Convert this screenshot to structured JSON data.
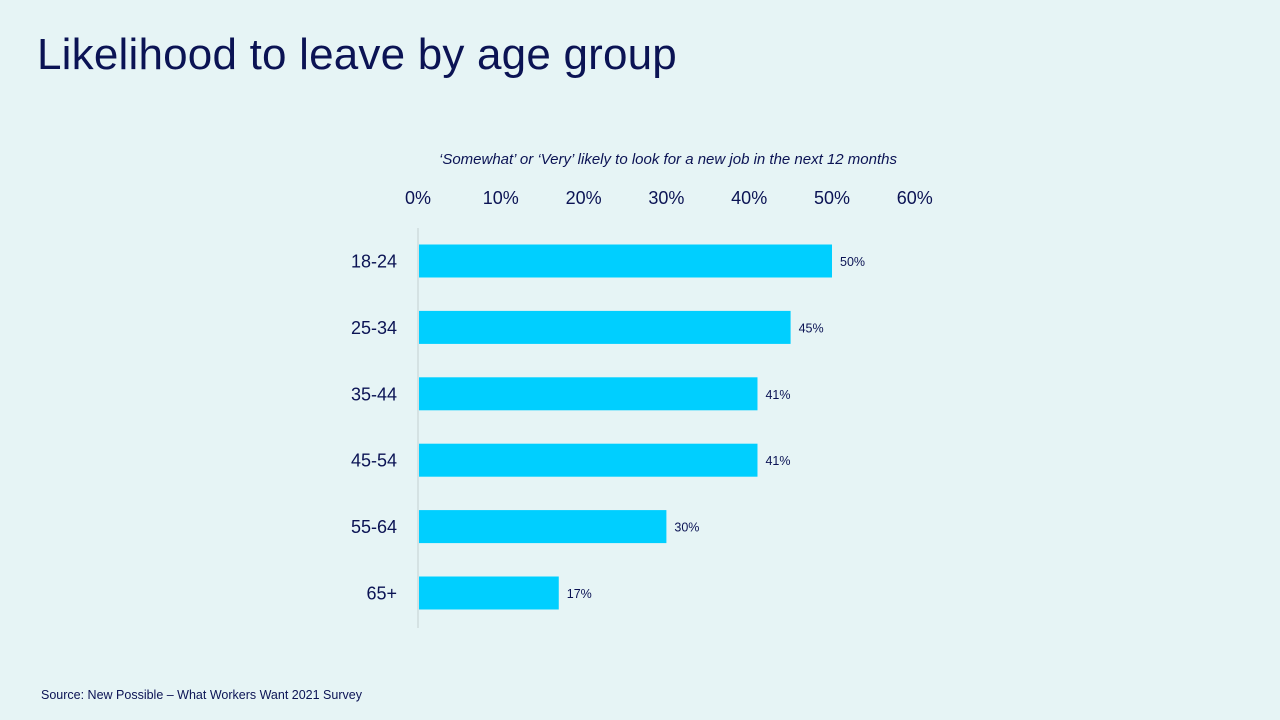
{
  "slide": {
    "title": "Likelihood to leave by age group",
    "source": "Source: New Possible – What Workers Want 2021 Survey"
  },
  "colors": {
    "background": "#e6f4f5",
    "text": "#0b1354",
    "bar": "#00cfff",
    "axis": "#cfdcdd"
  },
  "chart_data": {
    "type": "bar",
    "orientation": "horizontal",
    "subtitle": "‘Somewhat’ or ‘Very’ likely to look for a new job in the next 12 months",
    "categories": [
      "18-24",
      "25-34",
      "35-44",
      "45-54",
      "55-64",
      "65+"
    ],
    "values": [
      50,
      45,
      41,
      41,
      30,
      17
    ],
    "value_labels": [
      "50%",
      "45%",
      "41%",
      "41%",
      "30%",
      "17%"
    ],
    "xlim": [
      0,
      60
    ],
    "x_ticks": [
      "0%",
      "10%",
      "20%",
      "30%",
      "40%",
      "50%",
      "60%"
    ],
    "x_axis_position": "top",
    "grid": false,
    "legend": "none"
  }
}
